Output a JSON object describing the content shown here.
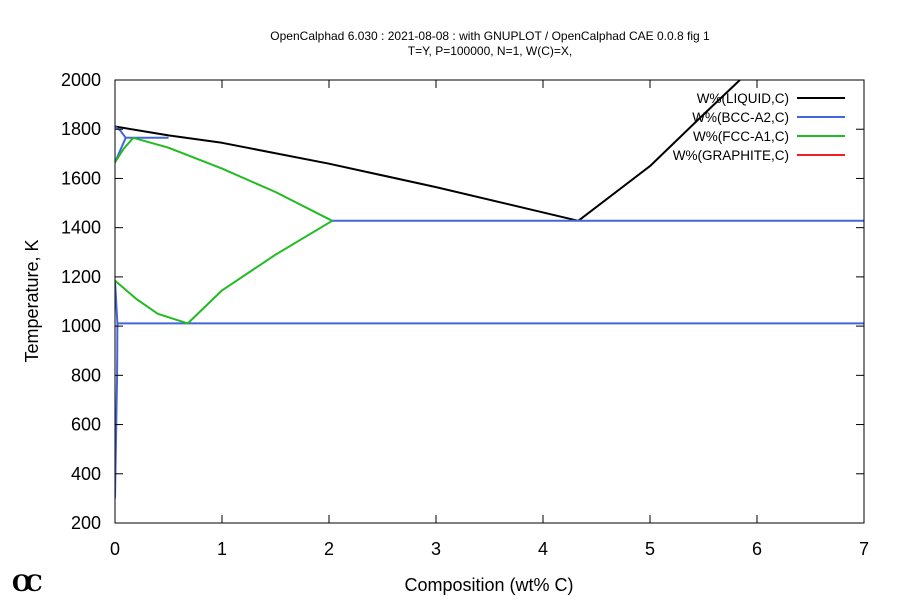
{
  "chart_data": {
    "type": "line",
    "title": "OpenCalphad   6.030 : 2021-08-08 : with GNUPLOT / OpenCalphad CAE 0.0.8 fig 1",
    "subtitle": "T=Y,  P=100000, N=1, W(C)=X,",
    "xlabel": "Composition (wt% C)",
    "ylabel": "Temperature, K",
    "xlim": [
      0,
      7
    ],
    "ylim": [
      200,
      2000
    ],
    "xticks": [
      0,
      1,
      2,
      3,
      4,
      5,
      6,
      7
    ],
    "yticks": [
      200,
      400,
      600,
      800,
      1000,
      1200,
      1400,
      1600,
      1800,
      2000
    ],
    "grid": false,
    "legend_position": "top-right",
    "series": [
      {
        "name": "W%(LIQUID,C)",
        "color": "#000000",
        "segments": [
          [
            [
              0.0,
              1811
            ],
            [
              0.5,
              1775
            ],
            [
              1.0,
              1745
            ],
            [
              2.0,
              1660
            ],
            [
              3.0,
              1565
            ],
            [
              4.33,
              1428
            ]
          ],
          [
            [
              4.33,
              1428
            ],
            [
              5.0,
              1650
            ],
            [
              5.5,
              1860
            ],
            [
              5.84,
              2000
            ]
          ]
        ]
      },
      {
        "name": "W%(BCC-A2,C)",
        "color": "#4466dd",
        "segments": [
          [
            [
              0.0,
              1811
            ],
            [
              0.05,
              1795
            ],
            [
              0.1,
              1765
            ],
            [
              0.0,
              1665
            ]
          ],
          [
            [
              0.1,
              1765
            ],
            [
              0.17,
              1765
            ],
            [
              0.5,
              1765
            ]
          ],
          [
            [
              0.0,
              300
            ],
            [
              0.02,
              800
            ],
            [
              0.022,
              1011
            ],
            [
              0.0,
              1185
            ]
          ],
          [
            [
              0.022,
              1011
            ],
            [
              7.0,
              1011
            ]
          ],
          [
            [
              2.03,
              1428
            ],
            [
              7.0,
              1428
            ]
          ]
        ]
      },
      {
        "name": "W%(FCC-A1,C)",
        "color": "#22bb22",
        "segments": [
          [
            [
              0.0,
              1665
            ],
            [
              0.08,
              1720
            ],
            [
              0.17,
              1765
            ]
          ],
          [
            [
              0.17,
              1765
            ],
            [
              0.5,
              1725
            ],
            [
              1.0,
              1640
            ],
            [
              1.5,
              1545
            ],
            [
              2.03,
              1428
            ]
          ],
          [
            [
              2.03,
              1428
            ],
            [
              1.5,
              1290
            ],
            [
              1.0,
              1145
            ],
            [
              0.68,
              1011
            ]
          ],
          [
            [
              0.68,
              1011
            ],
            [
              0.4,
              1050
            ],
            [
              0.2,
              1110
            ],
            [
              0.0,
              1185
            ]
          ]
        ]
      },
      {
        "name": "W%(GRAPHITE,C)",
        "color": "#ee2222",
        "segments": []
      }
    ]
  },
  "logo": {
    "text": "OC"
  }
}
